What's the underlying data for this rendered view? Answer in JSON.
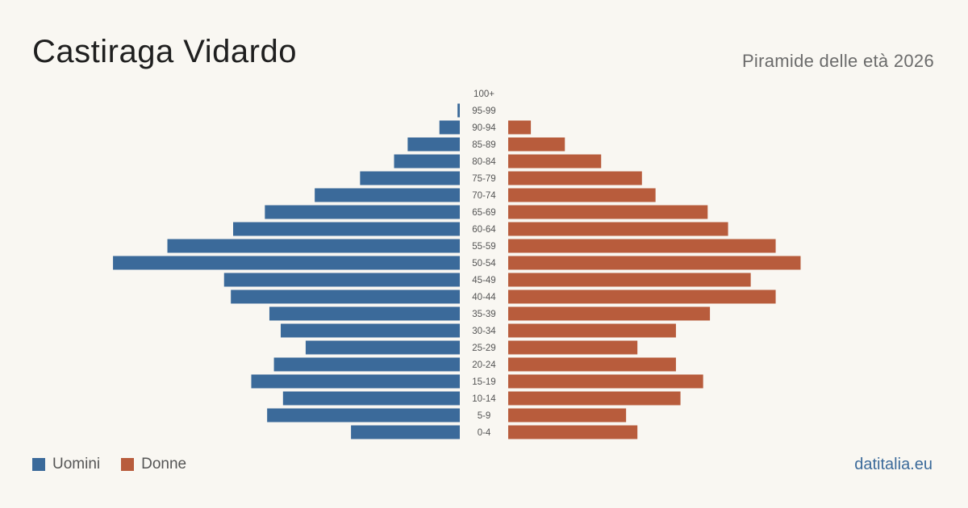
{
  "header": {
    "title": "Castiraga Vidardo",
    "subtitle": "Piramide delle età 2026"
  },
  "legend": {
    "men_label": "Uomini",
    "women_label": "Donne"
  },
  "footer": {
    "source": "datitalia.eu"
  },
  "colors": {
    "men": "#3b6a9a",
    "women": "#b85c3c",
    "background": "#f9f7f2"
  },
  "chart_data": {
    "type": "bar",
    "orientation": "horizontal-pyramid",
    "title": "Castiraga Vidardo",
    "subtitle": "Piramide delle età 2026",
    "categories": [
      "100+",
      "95-99",
      "90-94",
      "85-89",
      "80-84",
      "75-79",
      "70-74",
      "65-69",
      "60-64",
      "55-59",
      "50-54",
      "45-49",
      "40-44",
      "35-39",
      "30-34",
      "25-29",
      "20-24",
      "15-19",
      "10-14",
      "5-9",
      "0-4"
    ],
    "series": [
      {
        "name": "Uomini",
        "values": [
          0,
          1,
          9,
          23,
          29,
          44,
          64,
          86,
          100,
          129,
          153,
          104,
          101,
          84,
          79,
          68,
          82,
          92,
          78,
          85,
          48
        ]
      },
      {
        "name": "Donne",
        "values": [
          0,
          0,
          10,
          25,
          41,
          59,
          65,
          88,
          97,
          118,
          129,
          107,
          118,
          89,
          74,
          57,
          74,
          86,
          76,
          52,
          57
        ]
      }
    ],
    "legend_position": "bottom-left",
    "grid": false
  }
}
